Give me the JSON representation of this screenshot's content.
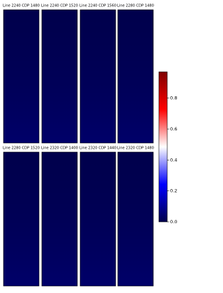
{
  "chart_data": {
    "type": "heatmap",
    "panels": [
      {
        "title": "Line 2240 CDP 1480"
      },
      {
        "title": "Line 2240 CDP 1520"
      },
      {
        "title": "Line 2240 CDP 1560"
      },
      {
        "title": "Line 2280 CDP 1480"
      },
      {
        "title": "Line 2280 CDP 1520"
      },
      {
        "title": "Line 2320 CDP 1400"
      },
      {
        "title": "Line 2320 CDP 1440"
      },
      {
        "title": "Line 2320 CDP 1480"
      }
    ],
    "colormap": [
      "#00004c",
      "#0000ff",
      "#ffffff",
      "#ff0000",
      "#7f0000"
    ],
    "clim": [
      0,
      0.97
    ],
    "cticks": [
      0.0,
      0.2,
      0.4,
      0.6,
      0.8
    ]
  }
}
